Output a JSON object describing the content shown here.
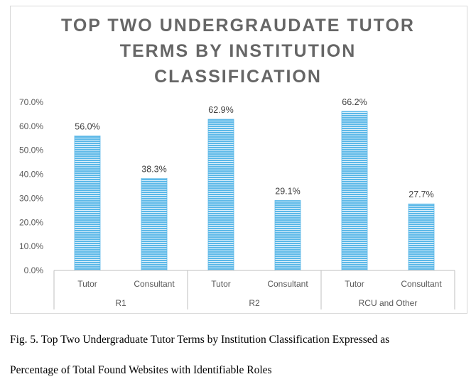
{
  "chart_data": {
    "type": "bar",
    "title_lines": [
      "TOP TWO UNDERGRAUDATE TUTOR",
      "TERMS BY INSTITUTION",
      "CLASSIFICATION"
    ],
    "groups": [
      "R1",
      "R2",
      "RCU and Other"
    ],
    "categories": [
      "Tutor",
      "Consultant",
      "Tutor",
      "Consultant",
      "Tutor",
      "Consultant"
    ],
    "values": [
      56.0,
      38.3,
      62.9,
      29.1,
      66.2,
      27.7
    ],
    "data_labels": [
      "56.0%",
      "38.3%",
      "62.9%",
      "29.1%",
      "66.2%",
      "27.7%"
    ],
    "y_ticks": [
      "0.0%",
      "10.0%",
      "20.0%",
      "30.0%",
      "40.0%",
      "50.0%",
      "60.0%",
      "70.0%"
    ],
    "ylim": [
      0,
      70
    ],
    "grid": false,
    "legend": "none",
    "bar_color": "#5bb8e8",
    "bar_stripe_color": "#ffffff"
  },
  "caption": {
    "line1": "Fig. 5. Top Two Undergraduate Tutor Terms by Institution Classification Expressed as",
    "line2": "Percentage of Total Found Websites with Identifiable Roles"
  }
}
